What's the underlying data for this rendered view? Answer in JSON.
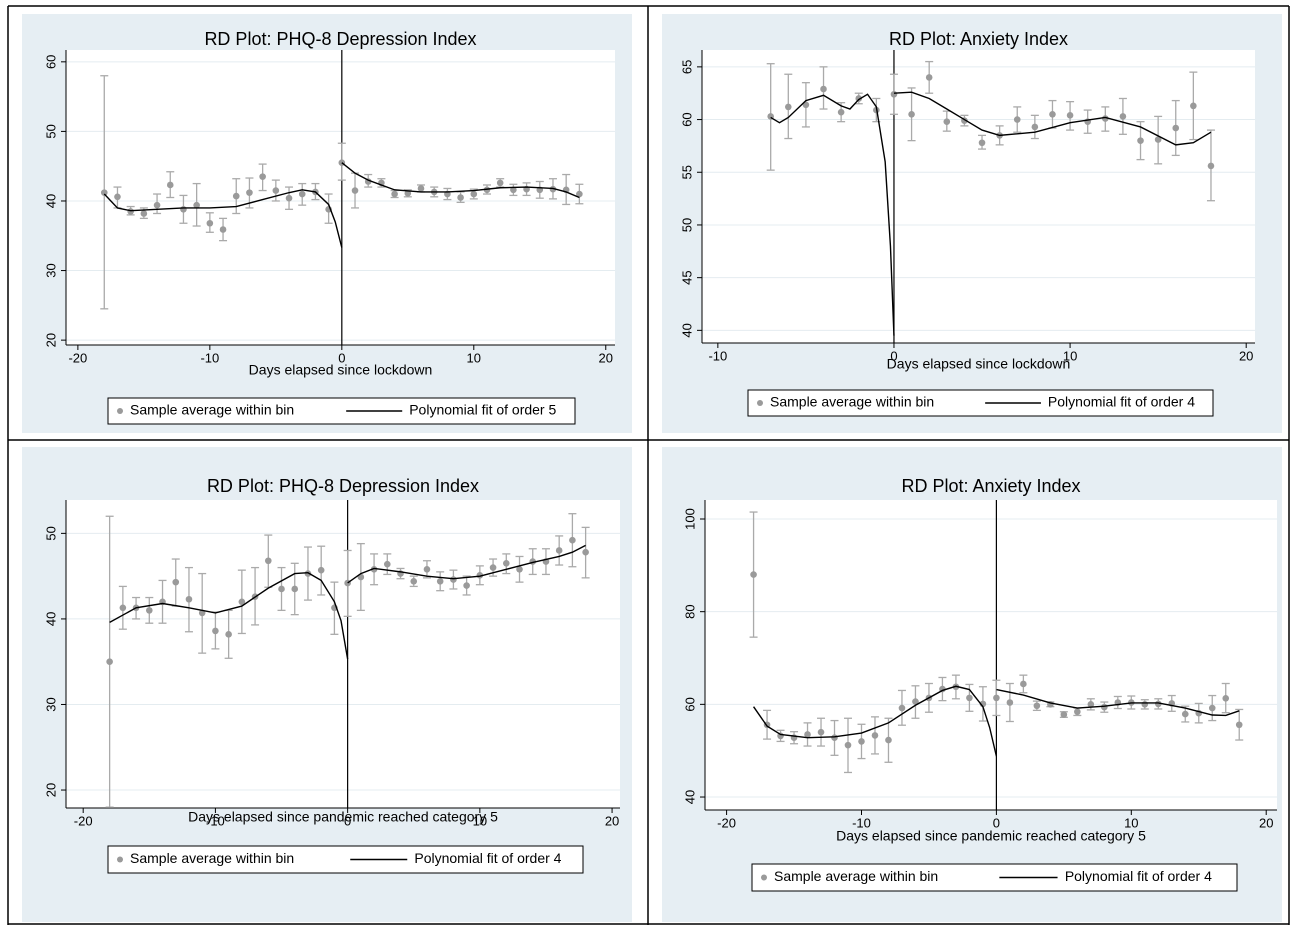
{
  "chart_data": [
    {
      "type": "scatter",
      "title": "RD Plot: PHQ-8 Depression Index",
      "xlabel": "Days elapsed since lockdown",
      "xlim": [
        -20.9,
        20.7
      ],
      "ylim": [
        19.3,
        61.7
      ],
      "xticks": [
        -20,
        -10,
        0,
        10,
        20
      ],
      "yticks": [
        20,
        30,
        40,
        50,
        60
      ],
      "grid": true,
      "cutoff": 0,
      "x": [
        -18,
        -17,
        -16,
        -15,
        -14,
        -13,
        -12,
        -11,
        -10,
        -9,
        -8,
        -7,
        -6,
        -5,
        -4,
        -3,
        -2,
        -1,
        0,
        1,
        2,
        3,
        4,
        5,
        6,
        7,
        8,
        9,
        10,
        11,
        12,
        13,
        14,
        15,
        16,
        17,
        18
      ],
      "series": [
        {
          "name": "Sample average within bin",
          "color": "#9a9a9a",
          "values": [
            41.2,
            40.6,
            38.5,
            38.2,
            39.4,
            42.3,
            38.8,
            39.4,
            36.8,
            35.9,
            40.7,
            41.2,
            43.5,
            41.5,
            40.4,
            41,
            41.3,
            38.8,
            45.5,
            41.5,
            42.8,
            42.6,
            41,
            41.1,
            41.8,
            41.3,
            41,
            40.5,
            41,
            41.6,
            42.6,
            41.6,
            41.7,
            41.6,
            41.7,
            41.6,
            41
          ],
          "ci_low": [
            24.5,
            39,
            38,
            37.5,
            38.2,
            40.5,
            36.8,
            36.4,
            35.5,
            34.3,
            38.2,
            39,
            41.5,
            40,
            38.8,
            39.4,
            40.2,
            36.8,
            43,
            39,
            42,
            42,
            40.5,
            40.6,
            41.3,
            40.6,
            40.2,
            39.8,
            40.3,
            41,
            42,
            40.8,
            40.8,
            40.4,
            40.3,
            39.5,
            39.6
          ],
          "ci_high": [
            58,
            42,
            39.2,
            39,
            41,
            44.2,
            40.8,
            42.5,
            38.3,
            37.5,
            43.2,
            43.3,
            45.3,
            43,
            42,
            42.5,
            42.5,
            41,
            48.3,
            44,
            43.8,
            43.2,
            41.5,
            41.6,
            42.3,
            42,
            41.8,
            41.3,
            41.7,
            42.3,
            43.2,
            42.4,
            42.6,
            42.8,
            43.2,
            43.8,
            42.4
          ]
        }
      ],
      "fit": {
        "name": "Polynomial fit of order 5",
        "color": "#000000",
        "x": [
          -18,
          -17,
          -16,
          -14,
          -12,
          -10,
          -8,
          -6,
          -4,
          -3,
          -2,
          -1,
          -0.5,
          0,
          0,
          0,
          1,
          2,
          4,
          6,
          8,
          10,
          12,
          14,
          16,
          17,
          18
        ],
        "values": [
          41,
          39,
          38.6,
          38.8,
          39,
          39,
          39.2,
          40.2,
          41.2,
          41.6,
          41.3,
          39.5,
          37,
          33.3,
          null,
          45.5,
          44,
          43,
          41.6,
          41.3,
          41.3,
          41.5,
          41.9,
          42,
          41.8,
          41.3,
          40.5
        ]
      }
    },
    {
      "type": "scatter",
      "title": "RD Plot: Anxiety Index",
      "xlabel": "Days elapsed since lockdown",
      "xlim": [
        -10.9,
        20.5
      ],
      "ylim": [
        38.8,
        66.6
      ],
      "xticks": [
        -10,
        0,
        10,
        20
      ],
      "yticks": [
        40,
        45,
        50,
        55,
        60,
        65
      ],
      "grid": true,
      "cutoff": 0,
      "x": [
        -7,
        -6,
        -5,
        -4,
        -3,
        -2,
        -1,
        0,
        1,
        2,
        3,
        4,
        5,
        6,
        7,
        8,
        9,
        10,
        11,
        12,
        13,
        14,
        15,
        16,
        17,
        18
      ],
      "series": [
        {
          "name": "Sample average within bin",
          "color": "#9a9a9a",
          "values": [
            60.3,
            61.2,
            61.4,
            62.9,
            60.7,
            62,
            60.9,
            62.4,
            60.5,
            64,
            59.8,
            59.9,
            57.8,
            58.5,
            60,
            59.3,
            60.5,
            60.4,
            59.8,
            60.1,
            60.3,
            58,
            58.1,
            59.2,
            61.3,
            55.6
          ],
          "ci_low": [
            55.2,
            58.2,
            59.3,
            61,
            59.8,
            61.5,
            59.8,
            60.5,
            58,
            62.5,
            58.9,
            59.4,
            57.2,
            57.6,
            58.8,
            58.2,
            59.2,
            59,
            58.7,
            58.9,
            58.6,
            56.2,
            55.8,
            56.6,
            58.1,
            52.3
          ],
          "ci_high": [
            65.3,
            64.3,
            63.5,
            65,
            61.6,
            62.5,
            62,
            64.3,
            63,
            65.5,
            60.8,
            60.4,
            58.5,
            59.4,
            61.2,
            60.4,
            61.8,
            61.7,
            60.9,
            61.2,
            62,
            59.8,
            60.3,
            61.8,
            64.5,
            59
          ]
        }
      ],
      "fit": {
        "name": "Polynomial fit of order 4",
        "color": "#000000",
        "x": [
          -7,
          -6.5,
          -6,
          -5,
          -4,
          -3,
          -2.5,
          -2,
          -1.5,
          -1,
          -0.5,
          -0.2,
          0,
          0,
          0,
          1,
          2,
          3,
          4,
          5,
          6,
          8,
          10,
          12,
          14,
          16,
          17,
          18
        ],
        "values": [
          60.2,
          59.7,
          60.2,
          61.8,
          62.3,
          61.3,
          61,
          61.9,
          62.4,
          61.2,
          56,
          48,
          39.5,
          null,
          62.5,
          62.6,
          62,
          61,
          60,
          59,
          58.5,
          58.8,
          59.7,
          60.2,
          59.3,
          57.6,
          57.8,
          58.8
        ]
      }
    },
    {
      "type": "scatter",
      "title": "RD Plot: PHQ-8 Depression Index",
      "xlabel": "Days elapsed since pandemic reached category 5",
      "xlim": [
        -21.3,
        20.6
      ],
      "ylim": [
        17.9,
        53.9
      ],
      "xticks": [
        -20,
        -10,
        0,
        10,
        20
      ],
      "yticks": [
        20,
        30,
        40,
        50
      ],
      "grid": true,
      "cutoff": 0,
      "x": [
        -18,
        -17,
        -16,
        -15,
        -14,
        -13,
        -12,
        -11,
        -10,
        -9,
        -8,
        -7,
        -6,
        -5,
        -4,
        -3,
        -2,
        -1,
        0,
        1,
        2,
        3,
        4,
        5,
        6,
        7,
        8,
        9,
        10,
        11,
        12,
        13,
        14,
        15,
        16,
        17,
        18
      ],
      "series": [
        {
          "name": "Sample average within bin",
          "color": "#9a9a9a",
          "values": [
            35,
            41.3,
            41.3,
            41,
            42,
            44.3,
            42.3,
            40.7,
            38.6,
            38.2,
            42,
            42.6,
            46.8,
            43.5,
            43.5,
            45.3,
            45.7,
            41.3,
            44.2,
            44.9,
            45.8,
            46.4,
            45.3,
            44.4,
            45.8,
            44.4,
            44.6,
            43.9,
            45.1,
            46,
            46.5,
            45.8,
            46.7,
            46.7,
            48,
            49.2,
            47.8
          ],
          "ci_low": [
            18,
            38.8,
            40,
            39.5,
            39.5,
            41.5,
            38.5,
            36,
            36.5,
            35.4,
            38.3,
            39.3,
            43.7,
            41,
            40.5,
            42.2,
            42.8,
            38.2,
            40.3,
            41,
            44,
            45.2,
            44.7,
            43.8,
            44.8,
            43.3,
            43.5,
            42.8,
            44,
            45,
            45.3,
            44.3,
            45.2,
            45.2,
            46.3,
            46.1,
            44.8
          ],
          "ci_high": [
            52,
            43.8,
            42.5,
            42.5,
            44.5,
            47,
            46,
            45.3,
            40.8,
            41,
            45.7,
            46,
            49.8,
            46,
            46.5,
            48.4,
            48.5,
            44.3,
            48,
            48.8,
            47.6,
            47.6,
            45.9,
            45,
            46.8,
            45.5,
            45.7,
            45,
            46.2,
            47,
            47.6,
            47.3,
            48.2,
            48.2,
            49.7,
            52.3,
            50.7
          ]
        }
      ],
      "fit": {
        "name": "Polynomial fit of order 4",
        "color": "#000000",
        "x": [
          -18,
          -16,
          -14,
          -12,
          -10,
          -8,
          -6,
          -4,
          -3,
          -2,
          -1,
          -0.5,
          0,
          0,
          0,
          1,
          2,
          4,
          6,
          8,
          10,
          12,
          14,
          16,
          17,
          18
        ],
        "values": [
          39.6,
          41.3,
          41.8,
          41.3,
          40.7,
          41.5,
          43.6,
          45.3,
          45.4,
          44.5,
          42,
          39.8,
          35.3,
          null,
          44.2,
          45.3,
          45.9,
          45.5,
          45,
          44.7,
          45,
          45.8,
          46.6,
          47.3,
          47.8,
          48.6
        ]
      }
    },
    {
      "type": "scatter",
      "title": "RD Plot: Anxiety Index",
      "xlabel": "Days elapsed since pandemic reached category 5",
      "xlim": [
        -21.6,
        20.8
      ],
      "ylim": [
        37.2,
        104.1
      ],
      "xticks": [
        -20,
        -10,
        0,
        10,
        20
      ],
      "yticks": [
        40,
        60,
        80,
        100
      ],
      "grid": true,
      "cutoff": 0,
      "x": [
        -18,
        -17,
        -16,
        -15,
        -14,
        -13,
        -12,
        -11,
        -10,
        -9,
        -8,
        -7,
        -6,
        -5,
        -4,
        -3,
        -2,
        -1,
        0,
        1,
        2,
        3,
        4,
        5,
        6,
        7,
        8,
        9,
        10,
        11,
        12,
        13,
        14,
        15,
        16,
        17,
        18
      ],
      "series": [
        {
          "name": "Sample average within bin",
          "color": "#9a9a9a",
          "values": [
            88,
            55.6,
            53.2,
            52.8,
            53.5,
            54,
            52.8,
            51.2,
            52,
            53.3,
            52.3,
            59.2,
            60.6,
            61.4,
            63.3,
            63.8,
            61.4,
            60.1,
            61.4,
            60.4,
            64.4,
            59.7,
            60,
            57.8,
            58.4,
            60,
            59.4,
            60.4,
            60.4,
            60,
            60.1,
            60.2,
            57.9,
            58.1,
            59.2,
            61.3,
            55.6
          ],
          "ci_low": [
            74.5,
            52.5,
            52,
            51.5,
            51,
            51,
            49,
            45.3,
            48.3,
            49.3,
            47.5,
            55.5,
            57,
            58.3,
            60.8,
            61.2,
            58.5,
            56.4,
            57.6,
            56.3,
            62.5,
            58.7,
            59.5,
            57.2,
            57.6,
            58.8,
            58.3,
            59.1,
            59,
            59,
            59,
            58.5,
            56.2,
            56,
            56.5,
            58.2,
            52.3
          ],
          "ci_high": [
            101.5,
            58.7,
            54.4,
            54.1,
            56,
            57,
            56.5,
            57,
            55.7,
            57.3,
            57,
            63,
            64,
            64.5,
            65.8,
            66.3,
            64.3,
            63.8,
            65.2,
            64.5,
            66.3,
            60.7,
            60.5,
            58.4,
            59.2,
            61.2,
            60.5,
            61.7,
            61.8,
            61,
            61.2,
            61.9,
            59.6,
            60.2,
            61.9,
            64.5,
            58.9
          ]
        }
      ],
      "fit": {
        "name": "Polynomial fit of order 4",
        "color": "#000000",
        "x": [
          -18,
          -17,
          -16,
          -14,
          -12,
          -10,
          -8,
          -6,
          -4,
          -3,
          -2,
          -1,
          -0.5,
          0,
          0,
          0,
          2,
          4,
          6,
          8,
          10,
          12,
          14,
          16,
          17,
          18
        ],
        "values": [
          59.5,
          55.3,
          53.5,
          52.8,
          53,
          53.8,
          56,
          59.8,
          63,
          63.9,
          63.2,
          59.5,
          55,
          48.8,
          null,
          63.2,
          62,
          60.3,
          59.2,
          59.6,
          60.3,
          60.3,
          59.2,
          57.7,
          57.6,
          58.6
        ]
      }
    }
  ]
}
